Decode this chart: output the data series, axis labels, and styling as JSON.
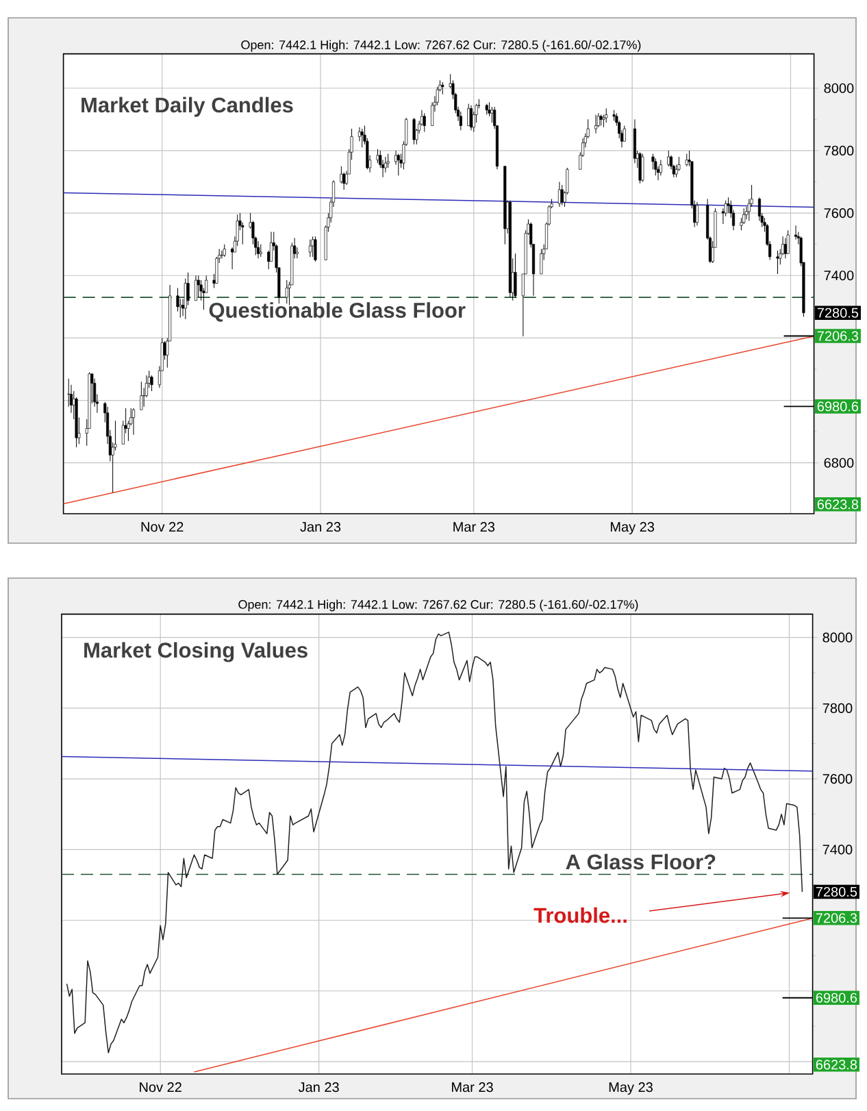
{
  "chart_data": [
    {
      "type": "candlestick",
      "title": "Market Daily Candles",
      "subtitle": "Open: 7442.1 High: 7442.1 Low: 7267.62 Cur: 7280.5 (-161.60/-02.17%)",
      "color": "#000000",
      "x": [
        "2022-09-26",
        "2022-09-27",
        "2022-09-28",
        "2022-09-29",
        "2022-09-30",
        "2022-10-03",
        "2022-10-04",
        "2022-10-05",
        "2022-10-06",
        "2022-10-07",
        "2022-10-10",
        "2022-10-11",
        "2022-10-12",
        "2022-10-13",
        "2022-10-14",
        "2022-10-17",
        "2022-10-18",
        "2022-10-19",
        "2022-10-20",
        "2022-10-21",
        "2022-10-24",
        "2022-10-25",
        "2022-10-26",
        "2022-10-27",
        "2022-10-28",
        "2022-10-31",
        "2022-11-01",
        "2022-11-02",
        "2022-11-03",
        "2022-11-04",
        "2022-11-07",
        "2022-11-08",
        "2022-11-09",
        "2022-11-10",
        "2022-11-11",
        "2022-11-14",
        "2022-11-15",
        "2022-11-16",
        "2022-11-17",
        "2022-11-18",
        "2022-11-21",
        "2022-11-22",
        "2022-11-23",
        "2022-11-24",
        "2022-11-25",
        "2022-11-28",
        "2022-11-29",
        "2022-11-30",
        "2022-12-01",
        "2022-12-02",
        "2022-12-05",
        "2022-12-06",
        "2022-12-07",
        "2022-12-08",
        "2022-12-09",
        "2022-12-12",
        "2022-12-13",
        "2022-12-14",
        "2022-12-15",
        "2022-12-16",
        "2022-12-19",
        "2022-12-20",
        "2022-12-21",
        "2022-12-22",
        "2022-12-23",
        "2022-12-28",
        "2022-12-29",
        "2022-12-30",
        "2023-01-03",
        "2023-01-04",
        "2023-01-05",
        "2023-01-06",
        "2023-01-09",
        "2023-01-10",
        "2023-01-11",
        "2023-01-12",
        "2023-01-13",
        "2023-01-16",
        "2023-01-17",
        "2023-01-18",
        "2023-01-19",
        "2023-01-20",
        "2023-01-23",
        "2023-01-24",
        "2023-01-25",
        "2023-01-26",
        "2023-01-27",
        "2023-01-30",
        "2023-01-31",
        "2023-02-01",
        "2023-02-02",
        "2023-02-03",
        "2023-02-06",
        "2023-02-07",
        "2023-02-08",
        "2023-02-09",
        "2023-02-10",
        "2023-02-13",
        "2023-02-14",
        "2023-02-15",
        "2023-02-16",
        "2023-02-17",
        "2023-02-20",
        "2023-02-21",
        "2023-02-22",
        "2023-02-23",
        "2023-02-24",
        "2023-02-27",
        "2023-02-28",
        "2023-03-01",
        "2023-03-02",
        "2023-03-03",
        "2023-03-06",
        "2023-03-07",
        "2023-03-08",
        "2023-03-09",
        "2023-03-10",
        "2023-03-13",
        "2023-03-14",
        "2023-03-15",
        "2023-03-16",
        "2023-03-17",
        "2023-03-20",
        "2023-03-21",
        "2023-03-22",
        "2023-03-23",
        "2023-03-24",
        "2023-03-27",
        "2023-03-28",
        "2023-03-29",
        "2023-03-30",
        "2023-03-31",
        "2023-04-03",
        "2023-04-04",
        "2023-04-05",
        "2023-04-06",
        "2023-04-11",
        "2023-04-12",
        "2023-04-13",
        "2023-04-14",
        "2023-04-17",
        "2023-04-18",
        "2023-04-19",
        "2023-04-20",
        "2023-04-21",
        "2023-04-24",
        "2023-04-25",
        "2023-04-26",
        "2023-04-27",
        "2023-04-28",
        "2023-05-02",
        "2023-05-03",
        "2023-05-04",
        "2023-05-05",
        "2023-05-09",
        "2023-05-10",
        "2023-05-11",
        "2023-05-12",
        "2023-05-15",
        "2023-05-16",
        "2023-05-17",
        "2023-05-18",
        "2023-05-19",
        "2023-05-22",
        "2023-05-23",
        "2023-05-24",
        "2023-05-25",
        "2023-05-26",
        "2023-05-30",
        "2023-05-31",
        "2023-06-01",
        "2023-06-02",
        "2023-06-05",
        "2023-06-06",
        "2023-06-07",
        "2023-06-08",
        "2023-06-09",
        "2023-06-12",
        "2023-06-13",
        "2023-06-14",
        "2023-06-15",
        "2023-06-16",
        "2023-06-19",
        "2023-06-20",
        "2023-06-21",
        "2023-06-22",
        "2023-06-23",
        "2023-06-26",
        "2023-06-27",
        "2023-06-28",
        "2023-06-29",
        "2023-06-30",
        "2023-07-03",
        "2023-07-04",
        "2023-07-05",
        "2023-07-06"
      ],
      "ohlc": [
        [
          7020,
          7070,
          6980,
          7020
        ],
        [
          7020,
          7050,
          6960,
          6985
        ],
        [
          6985,
          7030,
          6940,
          7005
        ],
        [
          7005,
          7010,
          6850,
          6880
        ],
        [
          6880,
          6945,
          6860,
          6895
        ],
        [
          6895,
          6940,
          6855,
          6910
        ],
        [
          6910,
          7090,
          6910,
          7085
        ],
        [
          7085,
          7085,
          6990,
          7055
        ],
        [
          7055,
          7070,
          6980,
          6995
        ],
        [
          6995,
          7020,
          6960,
          6990
        ],
        [
          6990,
          6995,
          6930,
          6960
        ],
        [
          6960,
          6980,
          6860,
          6885
        ],
        [
          6885,
          6905,
          6805,
          6825
        ],
        [
          6825,
          6865,
          6705,
          6850
        ],
        [
          6850,
          6935,
          6840,
          6860
        ],
        [
          6860,
          6935,
          6860,
          6920
        ],
        [
          6920,
          6975,
          6895,
          6910
        ],
        [
          6910,
          6935,
          6870,
          6925
        ],
        [
          6925,
          6975,
          6920,
          6945
        ],
        [
          6945,
          6975,
          6890,
          6970
        ],
        [
          6970,
          7060,
          6970,
          7015
        ],
        [
          7015,
          7040,
          6980,
          7015
        ],
        [
          7015,
          7080,
          7010,
          7055
        ],
        [
          7055,
          7095,
          7040,
          7075
        ],
        [
          7075,
          7080,
          7030,
          7050
        ],
        [
          7050,
          7110,
          7040,
          7095
        ],
        [
          7095,
          7200,
          7095,
          7185
        ],
        [
          7185,
          7190,
          7130,
          7145
        ],
        [
          7145,
          7200,
          7105,
          7190
        ],
        [
          7190,
          7370,
          7190,
          7335
        ],
        [
          7335,
          7360,
          7285,
          7300
        ],
        [
          7300,
          7325,
          7265,
          7305
        ],
        [
          7305,
          7325,
          7270,
          7295
        ],
        [
          7295,
          7390,
          7260,
          7375
        ],
        [
          7375,
          7410,
          7305,
          7320
        ],
        [
          7320,
          7400,
          7320,
          7385
        ],
        [
          7385,
          7400,
          7330,
          7370
        ],
        [
          7370,
          7385,
          7320,
          7350
        ],
        [
          7350,
          7360,
          7290,
          7345
        ],
        [
          7345,
          7400,
          7345,
          7385
        ],
        [
          7385,
          7405,
          7360,
          7375
        ],
        [
          7375,
          7460,
          7375,
          7455
        ],
        [
          7455,
          7485,
          7440,
          7465
        ],
        [
          7465,
          7480,
          7455,
          7465
        ],
        [
          7465,
          7500,
          7460,
          7485
        ],
        [
          7485,
          7490,
          7420,
          7475
        ],
        [
          7475,
          7525,
          7475,
          7510
        ],
        [
          7510,
          7595,
          7495,
          7575
        ],
        [
          7575,
          7600,
          7545,
          7560
        ],
        [
          7560,
          7570,
          7500,
          7555
        ],
        [
          7555,
          7600,
          7550,
          7570
        ],
        [
          7570,
          7575,
          7500,
          7520
        ],
        [
          7520,
          7525,
          7465,
          7490
        ],
        [
          7490,
          7510,
          7455,
          7470
        ],
        [
          7470,
          7500,
          7460,
          7475
        ],
        [
          7475,
          7480,
          7420,
          7445
        ],
        [
          7445,
          7540,
          7445,
          7505
        ],
        [
          7505,
          7540,
          7480,
          7495
        ],
        [
          7495,
          7500,
          7410,
          7425
        ],
        [
          7425,
          7425,
          7310,
          7330
        ],
        [
          7330,
          7385,
          7310,
          7360
        ],
        [
          7360,
          7380,
          7305,
          7370
        ],
        [
          7370,
          7505,
          7370,
          7495
        ],
        [
          7495,
          7520,
          7455,
          7470
        ],
        [
          7470,
          7490,
          7455,
          7475
        ],
        [
          7475,
          7515,
          7460,
          7495
        ],
        [
          7495,
          7525,
          7460,
          7515
        ],
        [
          7515,
          7525,
          7445,
          7450
        ],
        [
          7450,
          7560,
          7450,
          7555
        ],
        [
          7555,
          7600,
          7540,
          7585
        ],
        [
          7585,
          7645,
          7570,
          7635
        ],
        [
          7635,
          7705,
          7620,
          7700
        ],
        [
          7700,
          7750,
          7695,
          7725
        ],
        [
          7725,
          7730,
          7675,
          7695
        ],
        [
          7695,
          7735,
          7690,
          7725
        ],
        [
          7725,
          7805,
          7725,
          7795
        ],
        [
          7795,
          7870,
          7770,
          7845
        ],
        [
          7845,
          7875,
          7830,
          7860
        ],
        [
          7860,
          7870,
          7810,
          7850
        ],
        [
          7850,
          7880,
          7820,
          7830
        ],
        [
          7830,
          7840,
          7740,
          7745
        ],
        [
          7745,
          7785,
          7730,
          7770
        ],
        [
          7770,
          7805,
          7760,
          7785
        ],
        [
          7785,
          7800,
          7745,
          7755
        ],
        [
          7755,
          7770,
          7715,
          7745
        ],
        [
          7745,
          7780,
          7730,
          7760
        ],
        [
          7760,
          7790,
          7745,
          7765
        ],
        [
          7765,
          7800,
          7755,
          7785
        ],
        [
          7785,
          7790,
          7720,
          7770
        ],
        [
          7770,
          7790,
          7745,
          7760
        ],
        [
          7760,
          7830,
          7740,
          7820
        ],
        [
          7820,
          7905,
          7815,
          7900
        ],
        [
          7900,
          7905,
          7820,
          7835
        ],
        [
          7835,
          7870,
          7820,
          7865
        ],
        [
          7865,
          7895,
          7855,
          7885
        ],
        [
          7885,
          7930,
          7880,
          7910
        ],
        [
          7910,
          7920,
          7860,
          7880
        ],
        [
          7880,
          7955,
          7880,
          7945
        ],
        [
          7945,
          7975,
          7925,
          7955
        ],
        [
          7955,
          8005,
          7945,
          7995
        ],
        [
          7995,
          8025,
          7990,
          8010
        ],
        [
          8010,
          8020,
          7980,
          8005
        ],
        [
          8005,
          8045,
          8000,
          8015
        ],
        [
          8015,
          8025,
          7965,
          7980
        ],
        [
          7980,
          7985,
          7920,
          7930
        ],
        [
          7930,
          7940,
          7895,
          7910
        ],
        [
          7910,
          7925,
          7865,
          7880
        ],
        [
          7880,
          7950,
          7880,
          7935
        ],
        [
          7935,
          7945,
          7865,
          7875
        ],
        [
          7875,
          7925,
          7860,
          7915
        ],
        [
          7915,
          7950,
          7890,
          7945
        ],
        [
          7945,
          7965,
          7935,
          7945
        ],
        [
          7945,
          7950,
          7915,
          7930
        ],
        [
          7930,
          7955,
          7910,
          7920
        ],
        [
          7920,
          7940,
          7890,
          7930
        ],
        [
          7930,
          7940,
          7870,
          7880
        ],
        [
          7880,
          7880,
          7740,
          7750
        ],
        [
          7750,
          7750,
          7500,
          7550
        ],
        [
          7550,
          7640,
          7535,
          7635
        ],
        [
          7635,
          7640,
          7330,
          7345
        ],
        [
          7345,
          7455,
          7320,
          7410
        ],
        [
          7410,
          7470,
          7330,
          7335
        ],
        [
          7335,
          7405,
          7205,
          7405
        ],
        [
          7405,
          7545,
          7405,
          7535
        ],
        [
          7535,
          7580,
          7530,
          7565
        ],
        [
          7565,
          7570,
          7490,
          7500
        ],
        [
          7500,
          7500,
          7335,
          7405
        ],
        [
          7405,
          7485,
          7405,
          7470
        ],
        [
          7470,
          7500,
          7450,
          7485
        ],
        [
          7485,
          7570,
          7485,
          7565
        ],
        [
          7565,
          7625,
          7560,
          7620
        ],
        [
          7620,
          7645,
          7615,
          7630
        ],
        [
          7630,
          7700,
          7620,
          7675
        ],
        [
          7675,
          7690,
          7625,
          7635
        ],
        [
          7635,
          7670,
          7620,
          7665
        ],
        [
          7665,
          7745,
          7660,
          7740
        ],
        [
          7740,
          7795,
          7740,
          7785
        ],
        [
          7785,
          7840,
          7780,
          7825
        ],
        [
          7825,
          7855,
          7810,
          7845
        ],
        [
          7845,
          7900,
          7840,
          7870
        ],
        [
          7870,
          7915,
          7855,
          7880
        ],
        [
          7880,
          7920,
          7875,
          7910
        ],
        [
          7910,
          7915,
          7880,
          7900
        ],
        [
          7900,
          7915,
          7875,
          7905
        ],
        [
          7905,
          7935,
          7890,
          7915
        ],
        [
          7915,
          7930,
          7895,
          7910
        ],
        [
          7910,
          7920,
          7880,
          7890
        ],
        [
          7890,
          7895,
          7840,
          7855
        ],
        [
          7855,
          7865,
          7810,
          7830
        ],
        [
          7830,
          7880,
          7830,
          7870
        ],
        [
          7870,
          7900,
          7760,
          7775
        ],
        [
          7775,
          7800,
          7745,
          7790
        ],
        [
          7790,
          7795,
          7695,
          7705
        ],
        [
          7705,
          7790,
          7700,
          7780
        ],
        [
          7780,
          7790,
          7740,
          7765
        ],
        [
          7765,
          7775,
          7720,
          7740
        ],
        [
          7740,
          7750,
          7705,
          7730
        ],
        [
          7730,
          7770,
          7720,
          7755
        ],
        [
          7755,
          7800,
          7750,
          7780
        ],
        [
          7780,
          7785,
          7740,
          7750
        ],
        [
          7750,
          7755,
          7715,
          7725
        ],
        [
          7725,
          7755,
          7715,
          7740
        ],
        [
          7740,
          7780,
          7735,
          7755
        ],
        [
          7755,
          7790,
          7750,
          7770
        ],
        [
          7770,
          7800,
          7750,
          7765
        ],
        [
          7765,
          7765,
          7615,
          7625
        ],
        [
          7625,
          7640,
          7555,
          7570
        ],
        [
          7570,
          7635,
          7560,
          7625
        ],
        [
          7625,
          7645,
          7515,
          7520
        ],
        [
          7520,
          7525,
          7440,
          7445
        ],
        [
          7445,
          7510,
          7440,
          7490
        ],
        [
          7490,
          7615,
          7490,
          7605
        ],
        [
          7605,
          7615,
          7565,
          7600
        ],
        [
          7600,
          7640,
          7590,
          7630
        ],
        [
          7630,
          7650,
          7600,
          7625
        ],
        [
          7625,
          7640,
          7585,
          7600
        ],
        [
          7600,
          7610,
          7545,
          7560
        ],
        [
          7560,
          7585,
          7545,
          7570
        ],
        [
          7570,
          7615,
          7565,
          7595
        ],
        [
          7595,
          7620,
          7580,
          7605
        ],
        [
          7605,
          7645,
          7575,
          7630
        ],
        [
          7630,
          7690,
          7620,
          7645
        ],
        [
          7645,
          7650,
          7575,
          7590
        ],
        [
          7590,
          7600,
          7555,
          7570
        ],
        [
          7570,
          7585,
          7540,
          7560
        ],
        [
          7560,
          7565,
          7495,
          7500
        ],
        [
          7500,
          7510,
          7450,
          7460
        ],
        [
          7460,
          7480,
          7405,
          7455
        ],
        [
          7455,
          7485,
          7435,
          7470
        ],
        [
          7470,
          7525,
          7465,
          7500
        ],
        [
          7500,
          7520,
          7455,
          7470
        ],
        [
          7470,
          7545,
          7470,
          7530
        ],
        [
          7530,
          7560,
          7515,
          7525
        ],
        [
          7525,
          7540,
          7500,
          7520
        ],
        [
          7520,
          7525,
          7430,
          7440
        ],
        [
          7442.1,
          7442.1,
          7267.62,
          7280.5
        ]
      ],
      "series": [
        {
          "type": "line",
          "color": "#2b2bb8",
          "x": [
            "2022-09-24",
            "2023-07-10"
          ],
          "values": [
            7665,
            7619
          ]
        },
        {
          "type": "line",
          "color": "#e8442c",
          "x": [
            "2022-09-24",
            "2023-07-10"
          ],
          "values": [
            6669,
            7206
          ]
        }
      ],
      "xlim": [
        "2022-09-24",
        "2023-07-10"
      ],
      "ylim": [
        6637,
        8110
      ],
      "xticks": [
        {
          "value": "2022-11-01",
          "label": "Nov 22"
        },
        {
          "value": "2023-01-01",
          "label": "Jan 23"
        },
        {
          "value": "2023-03-01",
          "label": "Mar 23"
        },
        {
          "value": "2023-05-01",
          "label": "May 23"
        },
        {
          "value": "2023-07-01",
          "label": null
        }
      ],
      "yticks": [
        6800,
        {
          "value": 7000,
          "label": null
        },
        {
          "value": 7200,
          "label": null
        },
        7400,
        7600,
        7800,
        8000
      ],
      "grid": true,
      "ref_lines": [
        {
          "axis": "y",
          "value": 7330,
          "color": "#1f5230",
          "line_style": "dashed"
        },
        {
          "axis": "y",
          "value": 7206.3,
          "label": "7206.3",
          "color": "#000000",
          "line_style": "solid"
        },
        {
          "axis": "y",
          "value": 6980.6,
          "label": "6980.6",
          "color": "#000000",
          "line_style": "solid"
        }
      ],
      "annotations": [
        {
          "text": "Questionable Glass Floor",
          "x": "2022-11-17",
          "y": 7330
        },
        {
          "text": "7280.5",
          "x": "2023-07-06",
          "y": 7280.5
        },
        "6623.8"
      ]
    },
    {
      "type": "line",
      "title": "Market Closing Values",
      "subtitle": "Open: 7442.1 High: 7442.1 Low: 7267.62 Cur: 7280.5 (-161.60/-02.17%)",
      "x": [
        "2022-09-26",
        "2022-09-27",
        "2022-09-28",
        "2022-09-29",
        "2022-09-30",
        "2022-10-03",
        "2022-10-04",
        "2022-10-05",
        "2022-10-06",
        "2022-10-07",
        "2022-10-10",
        "2022-10-11",
        "2022-10-12",
        "2022-10-13",
        "2022-10-14",
        "2022-10-17",
        "2022-10-18",
        "2022-10-19",
        "2022-10-20",
        "2022-10-21",
        "2022-10-24",
        "2022-10-25",
        "2022-10-26",
        "2022-10-27",
        "2022-10-28",
        "2022-10-31",
        "2022-11-01",
        "2022-11-02",
        "2022-11-03",
        "2022-11-04",
        "2022-11-07",
        "2022-11-08",
        "2022-11-09",
        "2022-11-10",
        "2022-11-11",
        "2022-11-14",
        "2022-11-15",
        "2022-11-16",
        "2022-11-17",
        "2022-11-18",
        "2022-11-21",
        "2022-11-22",
        "2022-11-23",
        "2022-11-24",
        "2022-11-25",
        "2022-11-28",
        "2022-11-29",
        "2022-11-30",
        "2022-12-01",
        "2022-12-02",
        "2022-12-05",
        "2022-12-06",
        "2022-12-07",
        "2022-12-08",
        "2022-12-09",
        "2022-12-12",
        "2022-12-13",
        "2022-12-14",
        "2022-12-15",
        "2022-12-16",
        "2022-12-19",
        "2022-12-20",
        "2022-12-21",
        "2022-12-22",
        "2022-12-23",
        "2022-12-28",
        "2022-12-29",
        "2022-12-30",
        "2023-01-03",
        "2023-01-04",
        "2023-01-05",
        "2023-01-06",
        "2023-01-09",
        "2023-01-10",
        "2023-01-11",
        "2023-01-12",
        "2023-01-13",
        "2023-01-16",
        "2023-01-17",
        "2023-01-18",
        "2023-01-19",
        "2023-01-20",
        "2023-01-23",
        "2023-01-24",
        "2023-01-25",
        "2023-01-26",
        "2023-01-27",
        "2023-01-30",
        "2023-01-31",
        "2023-02-01",
        "2023-02-02",
        "2023-02-03",
        "2023-02-06",
        "2023-02-07",
        "2023-02-08",
        "2023-02-09",
        "2023-02-10",
        "2023-02-13",
        "2023-02-14",
        "2023-02-15",
        "2023-02-16",
        "2023-02-17",
        "2023-02-20",
        "2023-02-21",
        "2023-02-22",
        "2023-02-23",
        "2023-02-24",
        "2023-02-27",
        "2023-02-28",
        "2023-03-01",
        "2023-03-02",
        "2023-03-03",
        "2023-03-06",
        "2023-03-07",
        "2023-03-08",
        "2023-03-09",
        "2023-03-10",
        "2023-03-13",
        "2023-03-14",
        "2023-03-15",
        "2023-03-16",
        "2023-03-17",
        "2023-03-20",
        "2023-03-21",
        "2023-03-22",
        "2023-03-23",
        "2023-03-24",
        "2023-03-27",
        "2023-03-28",
        "2023-03-29",
        "2023-03-30",
        "2023-03-31",
        "2023-04-03",
        "2023-04-04",
        "2023-04-05",
        "2023-04-06",
        "2023-04-11",
        "2023-04-12",
        "2023-04-13",
        "2023-04-14",
        "2023-04-17",
        "2023-04-18",
        "2023-04-19",
        "2023-04-20",
        "2023-04-21",
        "2023-04-24",
        "2023-04-25",
        "2023-04-26",
        "2023-04-27",
        "2023-04-28",
        "2023-05-02",
        "2023-05-03",
        "2023-05-04",
        "2023-05-05",
        "2023-05-09",
        "2023-05-10",
        "2023-05-11",
        "2023-05-12",
        "2023-05-15",
        "2023-05-16",
        "2023-05-17",
        "2023-05-18",
        "2023-05-19",
        "2023-05-22",
        "2023-05-23",
        "2023-05-24",
        "2023-05-25",
        "2023-05-26",
        "2023-05-30",
        "2023-05-31",
        "2023-06-01",
        "2023-06-02",
        "2023-06-05",
        "2023-06-06",
        "2023-06-07",
        "2023-06-08",
        "2023-06-09",
        "2023-06-12",
        "2023-06-13",
        "2023-06-14",
        "2023-06-15",
        "2023-06-16",
        "2023-06-19",
        "2023-06-20",
        "2023-06-21",
        "2023-06-22",
        "2023-06-23",
        "2023-06-26",
        "2023-06-27",
        "2023-06-28",
        "2023-06-29",
        "2023-06-30",
        "2023-07-03",
        "2023-07-04",
        "2023-07-05",
        "2023-07-06"
      ],
      "series": [
        {
          "color": "#202020",
          "values": [
            7020,
            6985,
            7005,
            6880,
            6895,
            6910,
            7085,
            7055,
            6995,
            6990,
            6960,
            6885,
            6825,
            6850,
            6860,
            6920,
            6910,
            6925,
            6945,
            6970,
            7015,
            7015,
            7055,
            7075,
            7050,
            7095,
            7185,
            7145,
            7190,
            7335,
            7300,
            7305,
            7295,
            7375,
            7320,
            7385,
            7370,
            7350,
            7345,
            7385,
            7375,
            7455,
            7465,
            7465,
            7485,
            7475,
            7510,
            7575,
            7560,
            7555,
            7570,
            7520,
            7490,
            7470,
            7475,
            7445,
            7505,
            7495,
            7425,
            7330,
            7360,
            7370,
            7495,
            7470,
            7475,
            7495,
            7515,
            7450,
            7555,
            7585,
            7635,
            7700,
            7725,
            7695,
            7725,
            7795,
            7845,
            7860,
            7850,
            7830,
            7745,
            7770,
            7785,
            7755,
            7745,
            7760,
            7765,
            7785,
            7770,
            7760,
            7820,
            7900,
            7835,
            7865,
            7885,
            7910,
            7880,
            7945,
            7955,
            7995,
            8010,
            8005,
            8015,
            7980,
            7930,
            7910,
            7880,
            7935,
            7875,
            7915,
            7945,
            7945,
            7930,
            7920,
            7930,
            7880,
            7750,
            7550,
            7635,
            7345,
            7410,
            7335,
            7405,
            7535,
            7565,
            7500,
            7405,
            7470,
            7485,
            7565,
            7620,
            7630,
            7675,
            7635,
            7665,
            7740,
            7785,
            7825,
            7845,
            7870,
            7880,
            7910,
            7900,
            7905,
            7915,
            7910,
            7890,
            7855,
            7830,
            7870,
            7775,
            7790,
            7705,
            7780,
            7765,
            7740,
            7730,
            7755,
            7780,
            7750,
            7725,
            7740,
            7755,
            7770,
            7765,
            7625,
            7570,
            7625,
            7520,
            7445,
            7490,
            7605,
            7600,
            7630,
            7625,
            7600,
            7560,
            7570,
            7595,
            7605,
            7630,
            7645,
            7590,
            7570,
            7560,
            7500,
            7460,
            7455,
            7470,
            7500,
            7470,
            7530,
            7525,
            7520,
            7440,
            7280.5
          ]
        },
        {
          "type": "line",
          "color": "#2b2bb8",
          "x": [
            "2022-09-24",
            "2023-07-10"
          ],
          "values": [
            7663,
            7622
          ]
        },
        {
          "type": "line",
          "color": "#e8442c",
          "x": [
            "2022-11-14",
            "2023-07-10"
          ],
          "values": [
            6771,
            7206
          ]
        }
      ],
      "xlim": [
        "2022-09-24",
        "2023-07-10"
      ],
      "ylim": [
        6765,
        8066
      ],
      "xticks": [
        {
          "value": "2022-11-01",
          "label": "Nov 22"
        },
        {
          "value": "2023-01-01",
          "label": "Jan 23"
        },
        {
          "value": "2023-03-01",
          "label": "Mar 23"
        },
        {
          "value": "2023-05-01",
          "label": "May 23"
        },
        {
          "value": "2023-07-01",
          "label": null
        }
      ],
      "yticks": [
        {
          "value": 6800,
          "label": null
        },
        {
          "value": 7000,
          "label": null
        },
        {
          "value": 7200,
          "label": null
        },
        7400,
        7600,
        7800,
        8000
      ],
      "grid": true,
      "ref_lines": [
        {
          "axis": "y",
          "value": 7330,
          "color": "#1f5230",
          "line_style": "dashed"
        },
        {
          "axis": "y",
          "value": 7206.3,
          "label": "7206.3",
          "color": "#000000",
          "line_style": "solid"
        },
        {
          "axis": "y",
          "value": 6980.6,
          "label": "6980.6",
          "color": "#000000",
          "line_style": "solid"
        }
      ],
      "annotations": [
        {
          "text": "A Glass Floor?",
          "x": "2023-04-04",
          "y": 7330
        },
        "Trouble...",
        {
          "text": "7280.5",
          "x": "2023-07-06",
          "y": 7280.5
        },
        "6623.8"
      ]
    }
  ]
}
